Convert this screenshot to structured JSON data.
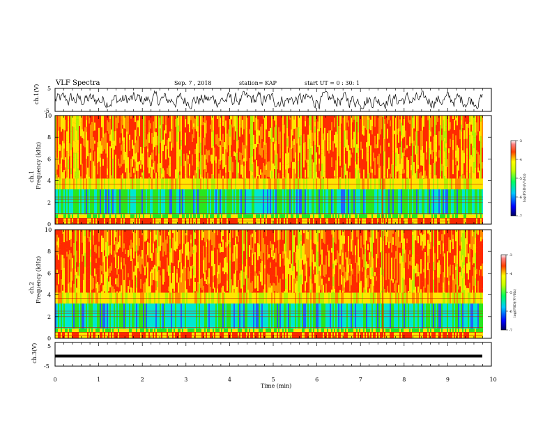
{
  "header": {
    "title": "VLF Spectra",
    "date": "Sep. 7 , 2018",
    "station": "station= KAP",
    "start": "start UT = 0 : 30: 1"
  },
  "chart_data": [
    {
      "type": "line",
      "panel": "ch1-waveform",
      "ylabel": "ch.1(V)",
      "ylim": [
        -5,
        5
      ],
      "y_ticks": [
        "5",
        "-5"
      ],
      "xlim": [
        0,
        10
      ],
      "description_values": "noisy voltage trace roughly between -3 and 3 V across 0-9.8 min"
    },
    {
      "type": "heatmap",
      "panel": "ch1-spectrogram",
      "ylabel_line1": "ch.1",
      "ylabel_line2": "Frequency (kHz)",
      "ylim": [
        0,
        10
      ],
      "y_ticks": [
        "0",
        "2",
        "4",
        "6",
        "8",
        "10"
      ],
      "xlim": [
        0,
        10
      ],
      "data_end_min": 9.8,
      "colorbar": {
        "label": "log(PSD)(V²/Hz)",
        "range": [
          -7,
          -3
        ],
        "ticks": [
          "-3",
          "-4",
          "-5",
          "-6",
          "-7"
        ]
      },
      "bands": [
        {
          "f_lo": 0,
          "f_hi": 0.6,
          "level": "mixed"
        },
        {
          "f_lo": 0.6,
          "f_hi": 3.3,
          "level": -5.3
        },
        {
          "f_lo": 3.3,
          "f_hi": 4.2,
          "level": -4.5
        },
        {
          "f_lo": 4.2,
          "f_hi": 10,
          "level": -3.8
        }
      ]
    },
    {
      "type": "heatmap",
      "panel": "ch2-spectrogram",
      "ylabel_line1": "ch.2",
      "ylabel_line2": "Frequency (kHz)",
      "ylim": [
        0,
        10
      ],
      "y_ticks": [
        "0",
        "2",
        "4",
        "6",
        "8",
        "10"
      ],
      "xlim": [
        0,
        10
      ],
      "data_end_min": 9.8,
      "colorbar": {
        "label": "log(PSD)(V²/Hz)",
        "range": [
          -7,
          -3
        ],
        "ticks": [
          "-3",
          "-4",
          "-5",
          "-6",
          "-7"
        ]
      },
      "bands": [
        {
          "f_lo": 0,
          "f_hi": 0.6,
          "level": "mixed"
        },
        {
          "f_lo": 0.6,
          "f_hi": 3.0,
          "level": -5.6
        },
        {
          "f_lo": 3.0,
          "f_hi": 4.5,
          "level": -4.6
        },
        {
          "f_lo": 4.5,
          "f_hi": 10,
          "level": -4.0
        }
      ]
    },
    {
      "type": "line",
      "panel": "ch3-waveform",
      "ylabel": "ch.3(V)",
      "ylim": [
        -5,
        5
      ],
      "y_ticks": [
        "5",
        "-5"
      ],
      "xlim": [
        0,
        10
      ],
      "x_ticks": [
        "0",
        "1",
        "2",
        "3",
        "4",
        "5",
        "6",
        "7",
        "8",
        "9",
        "10"
      ],
      "xlabel": "Time (min)",
      "series": [
        {
          "values_v": -1.6,
          "note": "flat thick line"
        }
      ]
    }
  ],
  "colors": {
    "red": "#ff2a00",
    "orange": "#ff8c00",
    "yellow": "#ffe600",
    "lime": "#b4f000",
    "green": "#28e61e",
    "cyan": "#00e6d2",
    "blue": "#1e64ff",
    "darkblue": "#0000a0"
  }
}
